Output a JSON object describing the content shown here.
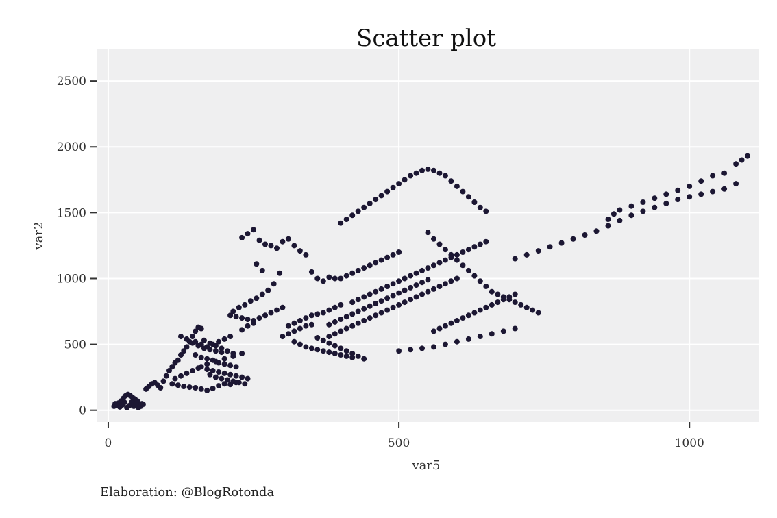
{
  "chart_data": {
    "type": "scatter",
    "title": "Scatter plot",
    "xlabel": "var5",
    "ylabel": "var2",
    "caption": "Elaboration: @BlogRotonda",
    "xlim": [
      -20,
      1120
    ],
    "ylim": [
      -90,
      2740
    ],
    "x_ticks": [
      0,
      500,
      1000
    ],
    "x_tick_labels": [
      "0",
      "500",
      "1000"
    ],
    "y_ticks": [
      0,
      500,
      1000,
      1500,
      2000,
      2500
    ],
    "y_tick_labels": [
      "0",
      "500",
      "1000",
      "1500",
      "2000",
      "2500"
    ],
    "grid": true,
    "legend": "none",
    "colors": {
      "panel_background": "#efeff0",
      "grid": "#ffffff",
      "point": "#1c1733",
      "axis_text": "#333333"
    },
    "points": [
      [
        10,
        30
      ],
      [
        14,
        40
      ],
      [
        18,
        55
      ],
      [
        22,
        70
      ],
      [
        26,
        90
      ],
      [
        30,
        110
      ],
      [
        34,
        120
      ],
      [
        38,
        110
      ],
      [
        42,
        95
      ],
      [
        46,
        85
      ],
      [
        50,
        70
      ],
      [
        54,
        40
      ],
      [
        58,
        50
      ],
      [
        12,
        50
      ],
      [
        16,
        35
      ],
      [
        20,
        25
      ],
      [
        24,
        40
      ],
      [
        28,
        60
      ],
      [
        32,
        20
      ],
      [
        36,
        35
      ],
      [
        40,
        60
      ],
      [
        44,
        30
      ],
      [
        48,
        45
      ],
      [
        52,
        20
      ],
      [
        56,
        30
      ],
      [
        60,
        45
      ],
      [
        65,
        160
      ],
      [
        70,
        180
      ],
      [
        75,
        200
      ],
      [
        80,
        210
      ],
      [
        85,
        190
      ],
      [
        90,
        170
      ],
      [
        95,
        220
      ],
      [
        100,
        260
      ],
      [
        105,
        300
      ],
      [
        110,
        330
      ],
      [
        115,
        360
      ],
      [
        120,
        380
      ],
      [
        125,
        420
      ],
      [
        130,
        450
      ],
      [
        135,
        480
      ],
      [
        140,
        520
      ],
      [
        145,
        560
      ],
      [
        150,
        600
      ],
      [
        155,
        630
      ],
      [
        160,
        620
      ],
      [
        125,
        560
      ],
      [
        135,
        540
      ],
      [
        145,
        510
      ],
      [
        155,
        490
      ],
      [
        165,
        470
      ],
      [
        175,
        460
      ],
      [
        185,
        450
      ],
      [
        195,
        440
      ],
      [
        150,
        520
      ],
      [
        160,
        500
      ],
      [
        170,
        480
      ],
      [
        180,
        500
      ],
      [
        190,
        520
      ],
      [
        200,
        540
      ],
      [
        210,
        560
      ],
      [
        165,
        530
      ],
      [
        175,
        510
      ],
      [
        185,
        490
      ],
      [
        195,
        470
      ],
      [
        205,
        450
      ],
      [
        215,
        430
      ],
      [
        150,
        420
      ],
      [
        160,
        400
      ],
      [
        170,
        390
      ],
      [
        180,
        380
      ],
      [
        190,
        360
      ],
      [
        200,
        350
      ],
      [
        210,
        340
      ],
      [
        220,
        330
      ],
      [
        160,
        330
      ],
      [
        170,
        310
      ],
      [
        180,
        300
      ],
      [
        190,
        290
      ],
      [
        200,
        280
      ],
      [
        210,
        270
      ],
      [
        220,
        260
      ],
      [
        230,
        250
      ],
      [
        240,
        240
      ],
      [
        175,
        270
      ],
      [
        185,
        250
      ],
      [
        195,
        240
      ],
      [
        205,
        230
      ],
      [
        215,
        220
      ],
      [
        225,
        210
      ],
      [
        235,
        200
      ],
      [
        110,
        200
      ],
      [
        120,
        190
      ],
      [
        130,
        180
      ],
      [
        140,
        175
      ],
      [
        150,
        170
      ],
      [
        160,
        160
      ],
      [
        170,
        150
      ],
      [
        180,
        165
      ],
      [
        190,
        185
      ],
      [
        200,
        200
      ],
      [
        210,
        195
      ],
      [
        220,
        210
      ],
      [
        115,
        240
      ],
      [
        125,
        260
      ],
      [
        135,
        280
      ],
      [
        145,
        300
      ],
      [
        155,
        320
      ],
      [
        170,
        350
      ],
      [
        185,
        370
      ],
      [
        200,
        390
      ],
      [
        215,
        410
      ],
      [
        230,
        430
      ],
      [
        230,
        610
      ],
      [
        240,
        640
      ],
      [
        250,
        660
      ],
      [
        260,
        700
      ],
      [
        270,
        720
      ],
      [
        280,
        740
      ],
      [
        290,
        760
      ],
      [
        300,
        780
      ],
      [
        210,
        720
      ],
      [
        220,
        710
      ],
      [
        230,
        700
      ],
      [
        240,
        690
      ],
      [
        250,
        680
      ],
      [
        215,
        750
      ],
      [
        225,
        780
      ],
      [
        235,
        800
      ],
      [
        245,
        830
      ],
      [
        255,
        850
      ],
      [
        265,
        880
      ],
      [
        275,
        910
      ],
      [
        285,
        960
      ],
      [
        295,
        1040
      ],
      [
        230,
        1310
      ],
      [
        240,
        1340
      ],
      [
        250,
        1370
      ],
      [
        260,
        1290
      ],
      [
        270,
        1260
      ],
      [
        280,
        1250
      ],
      [
        290,
        1230
      ],
      [
        300,
        1280
      ],
      [
        310,
        1300
      ],
      [
        320,
        1250
      ],
      [
        330,
        1210
      ],
      [
        340,
        1180
      ],
      [
        255,
        1110
      ],
      [
        265,
        1060
      ],
      [
        350,
        1050
      ],
      [
        360,
        1000
      ],
      [
        370,
        980
      ],
      [
        380,
        1010
      ],
      [
        390,
        1000
      ],
      [
        300,
        560
      ],
      [
        310,
        580
      ],
      [
        320,
        600
      ],
      [
        330,
        620
      ],
      [
        340,
        640
      ],
      [
        350,
        650
      ],
      [
        310,
        640
      ],
      [
        320,
        660
      ],
      [
        330,
        680
      ],
      [
        340,
        700
      ],
      [
        350,
        720
      ],
      [
        360,
        730
      ],
      [
        370,
        740
      ],
      [
        380,
        760
      ],
      [
        390,
        780
      ],
      [
        400,
        800
      ],
      [
        320,
        520
      ],
      [
        330,
        500
      ],
      [
        340,
        480
      ],
      [
        350,
        470
      ],
      [
        360,
        460
      ],
      [
        370,
        450
      ],
      [
        380,
        440
      ],
      [
        390,
        430
      ],
      [
        400,
        420
      ],
      [
        410,
        410
      ],
      [
        420,
        400
      ],
      [
        360,
        550
      ],
      [
        370,
        530
      ],
      [
        380,
        510
      ],
      [
        390,
        490
      ],
      [
        400,
        470
      ],
      [
        410,
        450
      ],
      [
        420,
        430
      ],
      [
        430,
        410
      ],
      [
        440,
        390
      ],
      [
        380,
        560
      ],
      [
        390,
        580
      ],
      [
        400,
        600
      ],
      [
        410,
        620
      ],
      [
        420,
        640
      ],
      [
        430,
        660
      ],
      [
        440,
        680
      ],
      [
        450,
        700
      ],
      [
        460,
        720
      ],
      [
        470,
        740
      ],
      [
        480,
        760
      ],
      [
        490,
        780
      ],
      [
        500,
        800
      ],
      [
        510,
        820
      ],
      [
        520,
        840
      ],
      [
        530,
        860
      ],
      [
        540,
        880
      ],
      [
        550,
        900
      ],
      [
        560,
        920
      ],
      [
        570,
        940
      ],
      [
        580,
        960
      ],
      [
        590,
        980
      ],
      [
        600,
        1000
      ],
      [
        380,
        650
      ],
      [
        390,
        670
      ],
      [
        400,
        690
      ],
      [
        410,
        710
      ],
      [
        420,
        730
      ],
      [
        430,
        750
      ],
      [
        440,
        770
      ],
      [
        450,
        790
      ],
      [
        460,
        810
      ],
      [
        470,
        830
      ],
      [
        480,
        850
      ],
      [
        490,
        870
      ],
      [
        500,
        890
      ],
      [
        510,
        910
      ],
      [
        520,
        930
      ],
      [
        530,
        950
      ],
      [
        540,
        970
      ],
      [
        550,
        990
      ],
      [
        420,
        820
      ],
      [
        430,
        840
      ],
      [
        440,
        860
      ],
      [
        450,
        880
      ],
      [
        460,
        900
      ],
      [
        470,
        920
      ],
      [
        480,
        940
      ],
      [
        490,
        960
      ],
      [
        500,
        980
      ],
      [
        510,
        1000
      ],
      [
        520,
        1020
      ],
      [
        530,
        1040
      ],
      [
        540,
        1060
      ],
      [
        550,
        1080
      ],
      [
        560,
        1100
      ],
      [
        570,
        1120
      ],
      [
        580,
        1140
      ],
      [
        590,
        1160
      ],
      [
        600,
        1180
      ],
      [
        610,
        1200
      ],
      [
        620,
        1220
      ],
      [
        630,
        1240
      ],
      [
        640,
        1260
      ],
      [
        650,
        1280
      ],
      [
        400,
        1000
      ],
      [
        410,
        1020
      ],
      [
        420,
        1040
      ],
      [
        430,
        1060
      ],
      [
        440,
        1080
      ],
      [
        450,
        1100
      ],
      [
        460,
        1120
      ],
      [
        470,
        1140
      ],
      [
        480,
        1160
      ],
      [
        490,
        1180
      ],
      [
        500,
        1200
      ],
      [
        400,
        1420
      ],
      [
        410,
        1450
      ],
      [
        420,
        1480
      ],
      [
        430,
        1510
      ],
      [
        440,
        1540
      ],
      [
        450,
        1570
      ],
      [
        460,
        1600
      ],
      [
        470,
        1630
      ],
      [
        480,
        1660
      ],
      [
        490,
        1690
      ],
      [
        500,
        1720
      ],
      [
        510,
        1750
      ],
      [
        520,
        1780
      ],
      [
        530,
        1800
      ],
      [
        540,
        1820
      ],
      [
        550,
        1830
      ],
      [
        560,
        1820
      ],
      [
        570,
        1800
      ],
      [
        580,
        1780
      ],
      [
        590,
        1740
      ],
      [
        600,
        1700
      ],
      [
        610,
        1660
      ],
      [
        620,
        1620
      ],
      [
        630,
        1580
      ],
      [
        640,
        1540
      ],
      [
        650,
        1510
      ],
      [
        550,
        1350
      ],
      [
        560,
        1300
      ],
      [
        570,
        1260
      ],
      [
        580,
        1220
      ],
      [
        590,
        1180
      ],
      [
        600,
        1140
      ],
      [
        610,
        1100
      ],
      [
        620,
        1060
      ],
      [
        630,
        1020
      ],
      [
        640,
        980
      ],
      [
        650,
        940
      ],
      [
        660,
        900
      ],
      [
        670,
        880
      ],
      [
        680,
        860
      ],
      [
        690,
        840
      ],
      [
        700,
        820
      ],
      [
        710,
        800
      ],
      [
        720,
        780
      ],
      [
        730,
        760
      ],
      [
        740,
        740
      ],
      [
        560,
        600
      ],
      [
        570,
        620
      ],
      [
        580,
        640
      ],
      [
        590,
        660
      ],
      [
        600,
        680
      ],
      [
        610,
        700
      ],
      [
        620,
        720
      ],
      [
        630,
        740
      ],
      [
        640,
        760
      ],
      [
        650,
        780
      ],
      [
        660,
        800
      ],
      [
        670,
        820
      ],
      [
        680,
        840
      ],
      [
        690,
        860
      ],
      [
        700,
        880
      ],
      [
        500,
        450
      ],
      [
        520,
        460
      ],
      [
        540,
        470
      ],
      [
        560,
        480
      ],
      [
        580,
        500
      ],
      [
        600,
        520
      ],
      [
        620,
        540
      ],
      [
        640,
        560
      ],
      [
        660,
        580
      ],
      [
        680,
        600
      ],
      [
        700,
        620
      ],
      [
        700,
        1150
      ],
      [
        720,
        1180
      ],
      [
        740,
        1210
      ],
      [
        760,
        1240
      ],
      [
        780,
        1270
      ],
      [
        800,
        1300
      ],
      [
        820,
        1330
      ],
      [
        840,
        1360
      ],
      [
        860,
        1400
      ],
      [
        880,
        1440
      ],
      [
        900,
        1480
      ],
      [
        920,
        1510
      ],
      [
        940,
        1540
      ],
      [
        960,
        1570
      ],
      [
        980,
        1600
      ],
      [
        1000,
        1620
      ],
      [
        1020,
        1640
      ],
      [
        1040,
        1660
      ],
      [
        1060,
        1680
      ],
      [
        1080,
        1720
      ],
      [
        860,
        1450
      ],
      [
        870,
        1490
      ],
      [
        880,
        1520
      ],
      [
        900,
        1550
      ],
      [
        920,
        1580
      ],
      [
        940,
        1610
      ],
      [
        960,
        1640
      ],
      [
        980,
        1670
      ],
      [
        1000,
        1700
      ],
      [
        1020,
        1740
      ],
      [
        1040,
        1780
      ],
      [
        1060,
        1800
      ],
      [
        1080,
        1870
      ],
      [
        1090,
        1900
      ],
      [
        1100,
        1930
      ]
    ]
  }
}
